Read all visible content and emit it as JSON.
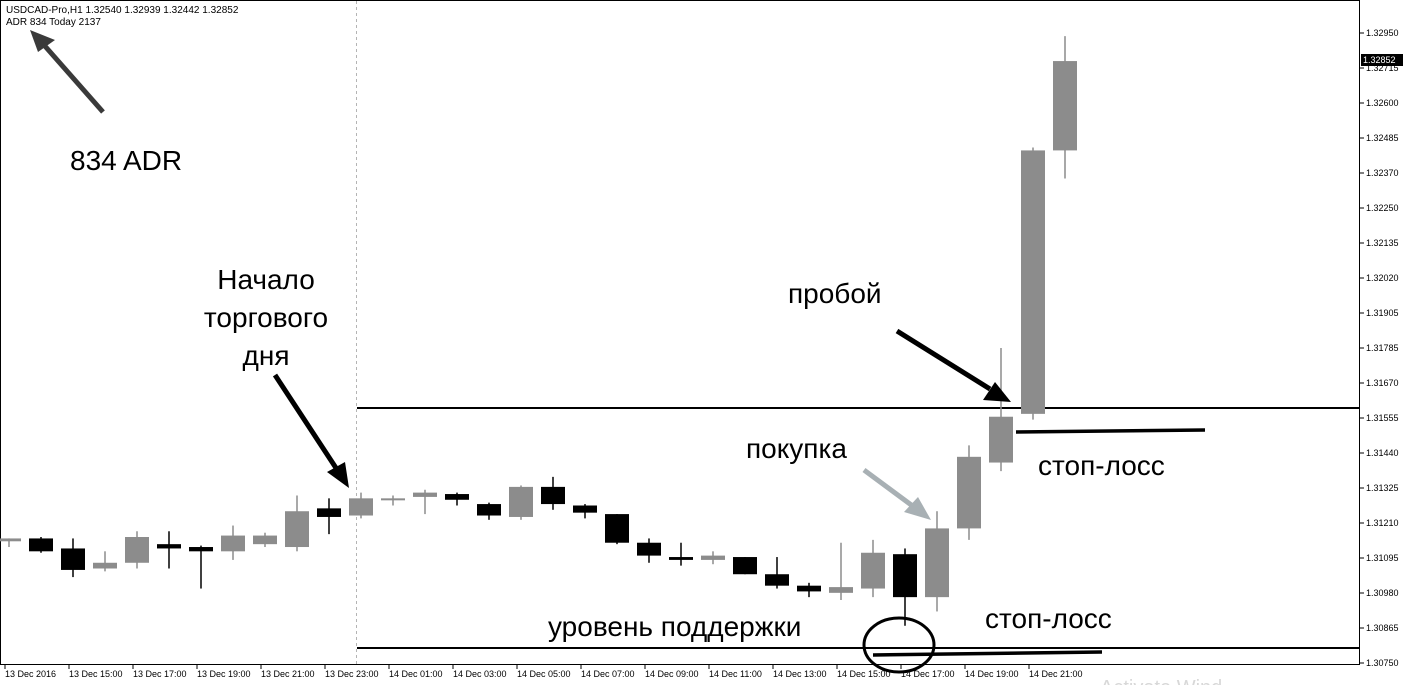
{
  "header": {
    "symbol_line": "USDCAD-Pro,H1  1.32540 1.32939 1.32442 1.32852",
    "indicator_line": "ADR 834  Today 2137"
  },
  "annotations": {
    "adr": "834 ADR",
    "session_start": [
      "Начало",
      "торгового",
      "дня"
    ],
    "breakout": "пробой",
    "buy": "покупка",
    "stop_loss_top": "стоп-лосс",
    "stop_loss_bottom": "стоп-лосс",
    "support": "уровень поддержки"
  },
  "watermark": "Activate Wind",
  "colors": {
    "bull": "#8c8c8c",
    "bear": "#000000",
    "grid_line": "#000000",
    "annotation_arrow": "#3a3a3a",
    "buy_arrow": "#a8b0b4",
    "price_tag_bg": "#000000",
    "price_tag_fg": "#ffffff"
  },
  "chart_data": {
    "type": "candlestick",
    "symbol": "USDCAD-Pro",
    "timeframe": "H1",
    "ohlc_last": {
      "open": 1.3254,
      "high": 1.32939,
      "low": 1.32442,
      "close": 1.32852
    },
    "current_price": "1.32852",
    "ylim": [
      1.3075,
      1.3305
    ],
    "y_ticks": [
      "1.32950",
      "1.32715",
      "1.32600",
      "1.32485",
      "1.32370",
      "1.32250",
      "1.32135",
      "1.32020",
      "1.31905",
      "1.31785",
      "1.31670",
      "1.31555",
      "1.31440",
      "1.31325",
      "1.31210",
      "1.31095",
      "1.30980",
      "1.30865",
      "1.30750"
    ],
    "x_ticks": [
      "13 Dec 2016",
      "13 Dec 15:00",
      "13 Dec 17:00",
      "13 Dec 19:00",
      "13 Dec 21:00",
      "13 Dec 23:00",
      "14 Dec 01:00",
      "14 Dec 03:00",
      "14 Dec 05:00",
      "14 Dec 07:00",
      "14 Dec 09:00",
      "14 Dec 11:00",
      "14 Dec 13:00",
      "14 Dec 15:00",
      "14 Dec 17:00",
      "14 Dec 19:00",
      "14 Dec 21:00"
    ],
    "candles": [
      {
        "o": 1.31175,
        "h": 1.31185,
        "l": 1.31155,
        "c": 1.31185
      },
      {
        "o": 1.31185,
        "h": 1.3119,
        "l": 1.31135,
        "c": 1.3114
      },
      {
        "o": 1.3115,
        "h": 1.31185,
        "l": 1.3105,
        "c": 1.31075
      },
      {
        "o": 1.3108,
        "h": 1.3114,
        "l": 1.3107,
        "c": 1.311
      },
      {
        "o": 1.311,
        "h": 1.3121,
        "l": 1.3108,
        "c": 1.3119
      },
      {
        "o": 1.31165,
        "h": 1.3121,
        "l": 1.3108,
        "c": 1.3115
      },
      {
        "o": 1.31155,
        "h": 1.3116,
        "l": 1.3101,
        "c": 1.3114
      },
      {
        "o": 1.3114,
        "h": 1.3123,
        "l": 1.3111,
        "c": 1.31195
      },
      {
        "o": 1.31165,
        "h": 1.31205,
        "l": 1.31155,
        "c": 1.31195
      },
      {
        "o": 1.31155,
        "h": 1.31335,
        "l": 1.3114,
        "c": 1.3128
      },
      {
        "o": 1.3129,
        "h": 1.31325,
        "l": 1.312,
        "c": 1.3126
      },
      {
        "o": 1.31265,
        "h": 1.31345,
        "l": 1.31255,
        "c": 1.31325
      },
      {
        "o": 1.3132,
        "h": 1.31335,
        "l": 1.313,
        "c": 1.31325
      },
      {
        "o": 1.3133,
        "h": 1.31355,
        "l": 1.3127,
        "c": 1.31345
      },
      {
        "o": 1.3134,
        "h": 1.31345,
        "l": 1.313,
        "c": 1.3132
      },
      {
        "o": 1.31305,
        "h": 1.3131,
        "l": 1.3125,
        "c": 1.31265
      },
      {
        "o": 1.3126,
        "h": 1.3137,
        "l": 1.3125,
        "c": 1.31365
      },
      {
        "o": 1.31365,
        "h": 1.314,
        "l": 1.31285,
        "c": 1.31305
      },
      {
        "o": 1.313,
        "h": 1.31305,
        "l": 1.31255,
        "c": 1.31275
      },
      {
        "o": 1.3127,
        "h": 1.3127,
        "l": 1.31165,
        "c": 1.3117
      },
      {
        "o": 1.3117,
        "h": 1.31185,
        "l": 1.311,
        "c": 1.31125
      },
      {
        "o": 1.3112,
        "h": 1.3117,
        "l": 1.3109,
        "c": 1.3111
      },
      {
        "o": 1.3111,
        "h": 1.3114,
        "l": 1.31095,
        "c": 1.31125
      },
      {
        "o": 1.3112,
        "h": 1.3112,
        "l": 1.3106,
        "c": 1.3106
      },
      {
        "o": 1.3106,
        "h": 1.3112,
        "l": 1.3101,
        "c": 1.3102
      },
      {
        "o": 1.3102,
        "h": 1.3103,
        "l": 1.3098,
        "c": 1.31
      },
      {
        "o": 1.30995,
        "h": 1.3117,
        "l": 1.3097,
        "c": 1.31015
      },
      {
        "o": 1.3101,
        "h": 1.3118,
        "l": 1.3098,
        "c": 1.31135
      },
      {
        "o": 1.3113,
        "h": 1.3115,
        "l": 1.3088,
        "c": 1.3098
      },
      {
        "o": 1.3098,
        "h": 1.3128,
        "l": 1.3093,
        "c": 1.3122
      },
      {
        "o": 1.3122,
        "h": 1.3151,
        "l": 1.3118,
        "c": 1.3147
      },
      {
        "o": 1.3145,
        "h": 1.3185,
        "l": 1.3142,
        "c": 1.3161
      },
      {
        "o": 1.3162,
        "h": 1.3255,
        "l": 1.316,
        "c": 1.3254
      },
      {
        "o": 1.3254,
        "h": 1.32939,
        "l": 1.32442,
        "c": 1.32852
      }
    ],
    "levels": [
      {
        "name": "resistance",
        "value": 1.31625
      },
      {
        "name": "support",
        "value": 1.3079
      }
    ],
    "session_separator": "13 Dec 23:00"
  }
}
